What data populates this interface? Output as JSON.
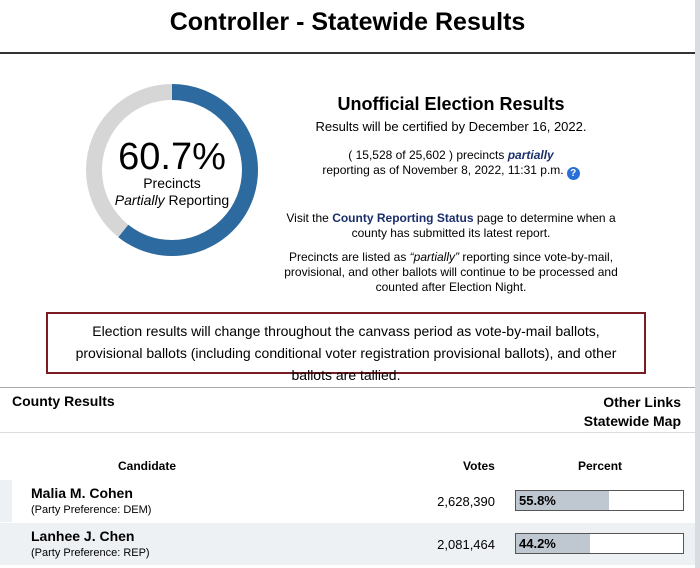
{
  "page": {
    "title": "Controller - Statewide Results"
  },
  "reporting": {
    "percent_text": "60.7%",
    "percent_value": 60.7,
    "label_line1": "Precincts",
    "label_partially": "Partially",
    "label_reporting": " Reporting",
    "ring_color": "#2d6a9f",
    "track_color": "#d6d6d6"
  },
  "info": {
    "title": "Unofficial Election Results",
    "certified": "Results will be certified by December 16, 2022.",
    "precinct_prefix": "( 15,528 of 25,602 ) precincts ",
    "precinct_partially": "partially",
    "precinct_suffix": "reporting as of November 8, 2022, 11:31 p.m.",
    "help_icon": "?",
    "visit_prefix": "Visit the ",
    "visit_link": "County Reporting Status",
    "visit_suffix": " page to determine when a county has submitted its latest report.",
    "note_prefix": "Precincts are listed as ",
    "note_partially": "“partially”",
    "note_suffix": " reporting since vote-by-mail, provisional, and other ballots will continue to be processed and counted after Election Night."
  },
  "notice": "Election results will change throughout the canvass period as vote-by-mail ballots, provisional ballots (including conditional voter registration provisional ballots), and other ballots are tallied.",
  "links": {
    "county_results": "County Results",
    "other_links": "Other Links",
    "statewide_map": "Statewide Map"
  },
  "table": {
    "headers": {
      "candidate": "Candidate",
      "votes": "Votes",
      "percent": "Percent"
    },
    "rows": [
      {
        "name": "Malia M. Cohen",
        "party": "(Party Preference: DEM)",
        "votes": "2,628,390",
        "percent_text": "55.8%",
        "percent_value": 55.8
      },
      {
        "name": "Lanhee J. Chen",
        "party": "(Party Preference: REP)",
        "votes": "2,081,464",
        "percent_text": "44.2%",
        "percent_value": 44.2
      }
    ]
  }
}
